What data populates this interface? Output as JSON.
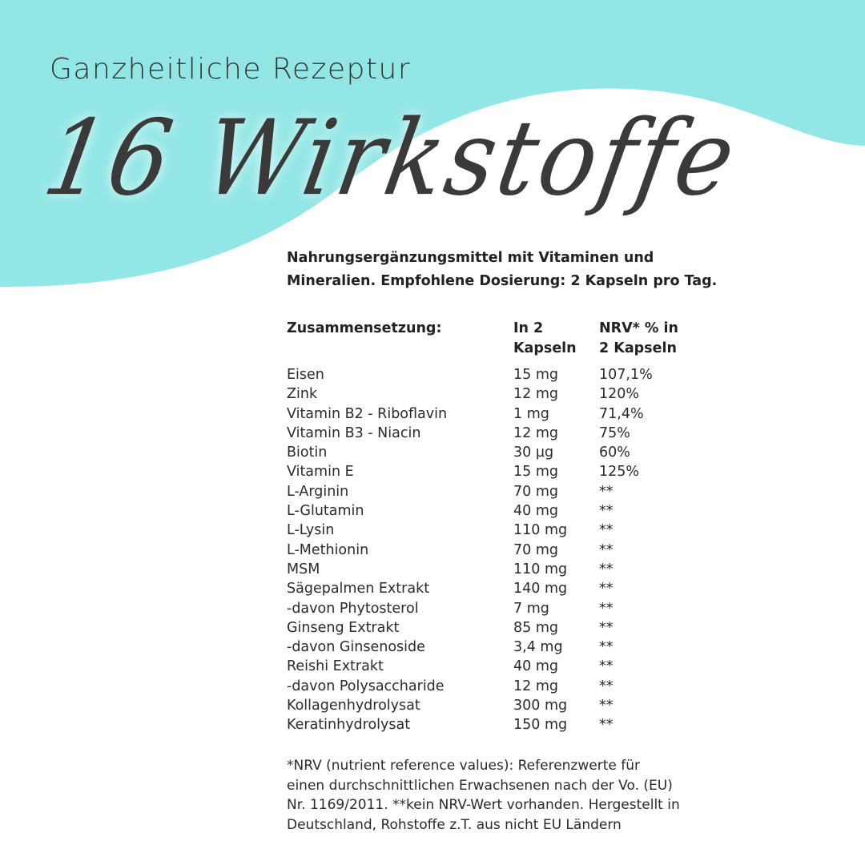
{
  "colors": {
    "wave": "#93e6e6"
  },
  "header": {
    "subtitle": "Ganzheitliche Rezeptur",
    "title": "16 Wirkstoffe"
  },
  "intro": {
    "line1": "Nahrungsergänzungsmittel mit Vitaminen und",
    "line2": "Mineralien. Empfohlene Dosierung: 2 Kapseln pro Tag."
  },
  "table": {
    "headers": {
      "name": "Zusammensetzung:",
      "amount_1": "In 2",
      "amount_2": "Kapseln",
      "nrv_1": "NRV* % in",
      "nrv_2": "2 Kapseln"
    },
    "rows": [
      {
        "name": "Eisen",
        "amount": "15 mg",
        "nrv": "107,1%"
      },
      {
        "name": "Zink",
        "amount": "12 mg",
        "nrv": "120%"
      },
      {
        "name": "Vitamin B2 - Riboflavin",
        "amount": "1 mg",
        "nrv": "71,4%"
      },
      {
        "name": "Vitamin B3 - Niacin",
        "amount": "12 mg",
        "nrv": "75%"
      },
      {
        "name": "Biotin",
        "amount": "30 µg",
        "nrv": "60%"
      },
      {
        "name": "Vitamin E",
        "amount": "15 mg",
        "nrv": "125%"
      },
      {
        "name": "L-Arginin",
        "amount": "70 mg",
        "nrv": "**"
      },
      {
        "name": "L-Glutamin",
        "amount": "40 mg",
        "nrv": "**"
      },
      {
        "name": "L-Lysin",
        "amount": "110 mg",
        "nrv": "**"
      },
      {
        "name": "L-Methionin",
        "amount": "70 mg",
        "nrv": "**"
      },
      {
        "name": "MSM",
        "amount": "110 mg",
        "nrv": "**"
      },
      {
        "name": "Sägepalmen Extrakt",
        "amount": "140 mg",
        "nrv": "**"
      },
      {
        "name": "-davon Phytosterol",
        "amount": "7 mg",
        "nrv": "**"
      },
      {
        "name": "Ginseng Extrakt",
        "amount": "85 mg",
        "nrv": "**"
      },
      {
        "name": "-davon Ginsenoside",
        "amount": "3,4 mg",
        "nrv": "**"
      },
      {
        "name": "Reishi Extrakt",
        "amount": "40 mg",
        "nrv": "**"
      },
      {
        "name": "-davon Polysaccharide",
        "amount": "12 mg",
        "nrv": "**"
      },
      {
        "name": "Kollagenhydrolysat",
        "amount": "300 mg",
        "nrv": "**"
      },
      {
        "name": "Keratinhydrolysat",
        "amount": "150 mg",
        "nrv": "**"
      }
    ]
  },
  "footnote": {
    "line1": "*NRV (nutrient reference values): Referenzwerte für",
    "line2": "einen durchschnittlichen Erwachsenen nach der Vo. (EU)",
    "line3": "Nr. 1169/2011. **kein NRV-Wert vorhanden. Hergestellt in",
    "line4": "Deutschland, Rohstoffe z.T. aus nicht EU Ländern"
  }
}
